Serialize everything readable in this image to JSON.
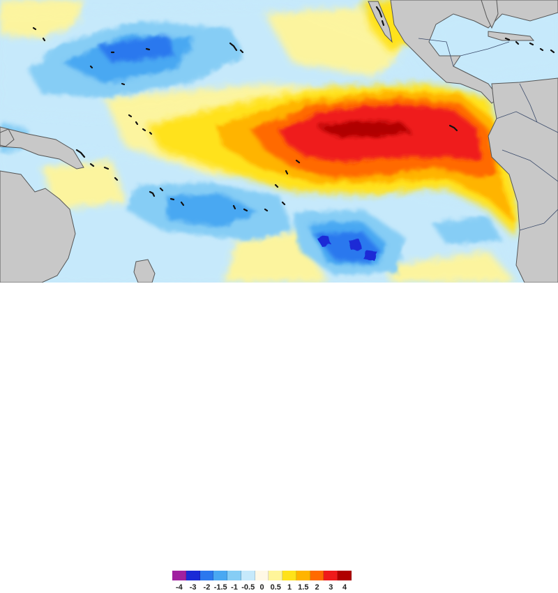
{
  "colors": {
    "land": "#c8c8c8",
    "coast": "#555555",
    "border": "#3a4a6a",
    "island": "#111111",
    "neutral": "#fff8e6"
  },
  "legend": {
    "labels": [
      "-4",
      "-3",
      "-2",
      "-1.5",
      "-1",
      "-0.5",
      "0",
      "0.5",
      "1",
      "1.5",
      "2",
      "3",
      "4"
    ],
    "swatch_colors": [
      "#a020a0",
      "#1a2ad6",
      "#2b78ee",
      "#49a8f2",
      "#86cdf5",
      "#c6e9fb",
      "#fff8e6",
      "#fff59a",
      "#ffe21a",
      "#ffb400",
      "#ff6a00",
      "#ef1a1a",
      "#b00000"
    ]
  },
  "map": {
    "variable": "sea-surface-temperature-anomaly",
    "region": "tropical-pacific-ocean",
    "features": {
      "warm_anomaly": "eastern-equatorial-pacific",
      "cool_anomalies": [
        "north-central-pacific",
        "south-pacific-west",
        "south-pacific-east"
      ]
    }
  }
}
